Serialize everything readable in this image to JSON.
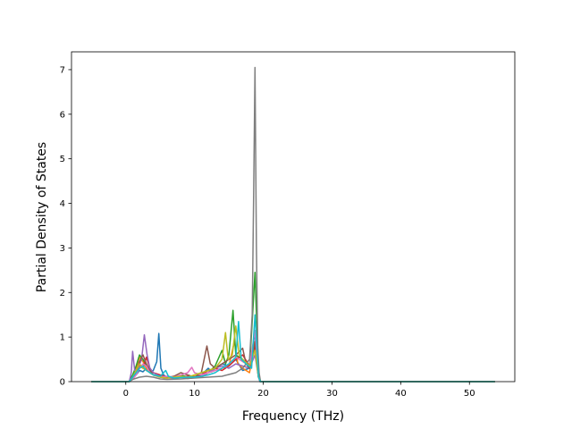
{
  "chart_data": {
    "type": "line",
    "title": "",
    "xlabel": "Frequency (THz)",
    "ylabel": "Partial Density of States",
    "xlim": [
      -7.9,
      56.6
    ],
    "ylim": [
      0,
      7.4
    ],
    "x_ticks": [
      0,
      10,
      20,
      30,
      40,
      50
    ],
    "y_ticks": [
      0,
      1,
      2,
      3,
      4,
      5,
      6,
      7
    ],
    "grid": false,
    "legend": "none",
    "x_range": [
      -5.0,
      53.7
    ],
    "series": [
      {
        "color": "#1f77b4",
        "points": [
          [
            0.5,
            0
          ],
          [
            1,
            0.08
          ],
          [
            1.5,
            0.15
          ],
          [
            2,
            0.25
          ],
          [
            2.5,
            0.22
          ],
          [
            3,
            0.3
          ],
          [
            3.5,
            0.2
          ],
          [
            4,
            0.25
          ],
          [
            4.5,
            0.45
          ],
          [
            4.8,
            1.08
          ],
          [
            5.1,
            0.3
          ],
          [
            5.5,
            0.15
          ],
          [
            6,
            0.1
          ],
          [
            7,
            0.08
          ],
          [
            8,
            0.1
          ],
          [
            9,
            0.07
          ],
          [
            10,
            0.09
          ],
          [
            11,
            0.15
          ],
          [
            12,
            0.3
          ],
          [
            12.5,
            0.22
          ],
          [
            13,
            0.3
          ],
          [
            14,
            0.4
          ],
          [
            15,
            0.35
          ],
          [
            16,
            0.5
          ],
          [
            17,
            0.25
          ],
          [
            18,
            0.3
          ],
          [
            18.8,
            1.1
          ],
          [
            19.2,
            0.2
          ],
          [
            19.5,
            0
          ]
        ]
      },
      {
        "color": "#ff7f0e",
        "points": [
          [
            0.5,
            0
          ],
          [
            1,
            0.1
          ],
          [
            1.5,
            0.3
          ],
          [
            2,
            0.55
          ],
          [
            2.5,
            0.45
          ],
          [
            3,
            0.3
          ],
          [
            3.5,
            0.2
          ],
          [
            4,
            0.15
          ],
          [
            5,
            0.1
          ],
          [
            6,
            0.08
          ],
          [
            7,
            0.12
          ],
          [
            8,
            0.1
          ],
          [
            9,
            0.08
          ],
          [
            10,
            0.12
          ],
          [
            11,
            0.1
          ],
          [
            12,
            0.2
          ],
          [
            13,
            0.25
          ],
          [
            14,
            0.3
          ],
          [
            15,
            0.35
          ],
          [
            15.8,
            0.9
          ],
          [
            16.3,
            0.4
          ],
          [
            17,
            0.3
          ],
          [
            18,
            0.2
          ],
          [
            18.8,
            0.9
          ],
          [
            19.3,
            0.1
          ],
          [
            19.6,
            0
          ]
        ]
      },
      {
        "color": "#2ca02c",
        "points": [
          [
            0.5,
            0
          ],
          [
            1,
            0.15
          ],
          [
            1.5,
            0.35
          ],
          [
            2,
            0.6
          ],
          [
            2.5,
            0.5
          ],
          [
            3,
            0.35
          ],
          [
            3.5,
            0.25
          ],
          [
            4,
            0.2
          ],
          [
            5,
            0.12
          ],
          [
            6,
            0.1
          ],
          [
            7,
            0.1
          ],
          [
            8,
            0.15
          ],
          [
            9,
            0.1
          ],
          [
            10,
            0.1
          ],
          [
            11,
            0.12
          ],
          [
            12,
            0.2
          ],
          [
            13,
            0.35
          ],
          [
            14,
            0.7
          ],
          [
            14.5,
            0.4
          ],
          [
            15,
            0.6
          ],
          [
            15.6,
            1.6
          ],
          [
            16,
            0.6
          ],
          [
            17,
            0.5
          ],
          [
            18,
            0.3
          ],
          [
            18.8,
            2.45
          ],
          [
            19.3,
            0.2
          ],
          [
            19.6,
            0
          ]
        ]
      },
      {
        "color": "#d62728",
        "points": [
          [
            0.5,
            0
          ],
          [
            1,
            0.1
          ],
          [
            1.5,
            0.2
          ],
          [
            2,
            0.35
          ],
          [
            2.5,
            0.3
          ],
          [
            3,
            0.55
          ],
          [
            3.5,
            0.3
          ],
          [
            4,
            0.2
          ],
          [
            5,
            0.15
          ],
          [
            6,
            0.1
          ],
          [
            7,
            0.08
          ],
          [
            8,
            0.1
          ],
          [
            9,
            0.12
          ],
          [
            10,
            0.1
          ],
          [
            11,
            0.15
          ],
          [
            12,
            0.25
          ],
          [
            13,
            0.3
          ],
          [
            14,
            0.25
          ],
          [
            15,
            0.35
          ],
          [
            16,
            0.5
          ],
          [
            17,
            0.6
          ],
          [
            18,
            0.35
          ],
          [
            18.8,
            0.8
          ],
          [
            19.3,
            0.1
          ],
          [
            19.6,
            0
          ]
        ]
      },
      {
        "color": "#9467bd",
        "points": [
          [
            0.5,
            0
          ],
          [
            0.8,
            0.2
          ],
          [
            1.0,
            0.68
          ],
          [
            1.3,
            0.25
          ],
          [
            1.8,
            0.3
          ],
          [
            2.3,
            0.5
          ],
          [
            2.7,
            1.05
          ],
          [
            3.1,
            0.6
          ],
          [
            3.5,
            0.3
          ],
          [
            4,
            0.2
          ],
          [
            5,
            0.12
          ],
          [
            6,
            0.1
          ],
          [
            7,
            0.08
          ],
          [
            8,
            0.1
          ],
          [
            9,
            0.09
          ],
          [
            10,
            0.1
          ],
          [
            11,
            0.12
          ],
          [
            12,
            0.2
          ],
          [
            13,
            0.3
          ],
          [
            14,
            0.35
          ],
          [
            15,
            0.3
          ],
          [
            16,
            0.4
          ],
          [
            17,
            0.35
          ],
          [
            18,
            0.3
          ],
          [
            18.8,
            0.6
          ],
          [
            19.3,
            0.1
          ],
          [
            19.6,
            0
          ]
        ]
      },
      {
        "color": "#8c564b",
        "points": [
          [
            0.5,
            0
          ],
          [
            1,
            0.1
          ],
          [
            1.5,
            0.2
          ],
          [
            2,
            0.45
          ],
          [
            2.5,
            0.6
          ],
          [
            3,
            0.4
          ],
          [
            3.5,
            0.25
          ],
          [
            4,
            0.15
          ],
          [
            5,
            0.1
          ],
          [
            6,
            0.09
          ],
          [
            7,
            0.12
          ],
          [
            8,
            0.2
          ],
          [
            9,
            0.15
          ],
          [
            10,
            0.1
          ],
          [
            11,
            0.2
          ],
          [
            11.8,
            0.8
          ],
          [
            12.3,
            0.4
          ],
          [
            13,
            0.3
          ],
          [
            14,
            0.4
          ],
          [
            15,
            0.5
          ],
          [
            16,
            0.6
          ],
          [
            17,
            0.75
          ],
          [
            17.5,
            0.4
          ],
          [
            18,
            0.3
          ],
          [
            18.8,
            0.9
          ],
          [
            19.3,
            0.1
          ],
          [
            19.6,
            0
          ]
        ]
      },
      {
        "color": "#e377c2",
        "points": [
          [
            0.5,
            0
          ],
          [
            1,
            0.05
          ],
          [
            1.5,
            0.15
          ],
          [
            2,
            0.3
          ],
          [
            2.5,
            0.4
          ],
          [
            3,
            0.35
          ],
          [
            3.5,
            0.2
          ],
          [
            4,
            0.15
          ],
          [
            5,
            0.1
          ],
          [
            6,
            0.12
          ],
          [
            7,
            0.1
          ],
          [
            8,
            0.15
          ],
          [
            9,
            0.2
          ],
          [
            9.6,
            0.32
          ],
          [
            10,
            0.2
          ],
          [
            11,
            0.15
          ],
          [
            12,
            0.2
          ],
          [
            13,
            0.25
          ],
          [
            14,
            0.3
          ],
          [
            15,
            0.4
          ],
          [
            16,
            0.55
          ],
          [
            17,
            0.45
          ],
          [
            18,
            0.35
          ],
          [
            18.8,
            1.15
          ],
          [
            19.3,
            0.1
          ],
          [
            19.6,
            0
          ]
        ]
      },
      {
        "color": "#7f7f7f",
        "points": [
          [
            0.5,
            0
          ],
          [
            1,
            0.05
          ],
          [
            2,
            0.1
          ],
          [
            3,
            0.12
          ],
          [
            4,
            0.1
          ],
          [
            5,
            0.06
          ],
          [
            6,
            0.05
          ],
          [
            8,
            0.06
          ],
          [
            10,
            0.08
          ],
          [
            12,
            0.1
          ],
          [
            14,
            0.12
          ],
          [
            16,
            0.2
          ],
          [
            17,
            0.3
          ],
          [
            18,
            0.5
          ],
          [
            18.4,
            1.5
          ],
          [
            18.6,
            4.2
          ],
          [
            18.8,
            7.05
          ],
          [
            19.0,
            3.0
          ],
          [
            19.2,
            0.8
          ],
          [
            19.4,
            0.2
          ],
          [
            19.6,
            0
          ]
        ]
      },
      {
        "color": "#bcbd22",
        "points": [
          [
            0.5,
            0
          ],
          [
            1,
            0.1
          ],
          [
            1.5,
            0.25
          ],
          [
            2,
            0.4
          ],
          [
            2.5,
            0.3
          ],
          [
            3,
            0.25
          ],
          [
            3.5,
            0.2
          ],
          [
            4,
            0.15
          ],
          [
            5,
            0.1
          ],
          [
            6,
            0.08
          ],
          [
            7,
            0.1
          ],
          [
            8,
            0.12
          ],
          [
            9,
            0.1
          ],
          [
            10,
            0.15
          ],
          [
            11,
            0.2
          ],
          [
            12,
            0.25
          ],
          [
            13,
            0.3
          ],
          [
            14,
            0.5
          ],
          [
            14.5,
            1.1
          ],
          [
            14.9,
            0.5
          ],
          [
            15.5,
            0.6
          ],
          [
            16,
            1.25
          ],
          [
            16.5,
            0.6
          ],
          [
            17,
            0.5
          ],
          [
            18,
            0.35
          ],
          [
            18.8,
            0.7
          ],
          [
            19.3,
            0.1
          ],
          [
            19.6,
            0
          ]
        ]
      },
      {
        "color": "#17becf",
        "points": [
          [
            0.5,
            0
          ],
          [
            1,
            0.1
          ],
          [
            1.5,
            0.2
          ],
          [
            2,
            0.3
          ],
          [
            2.5,
            0.35
          ],
          [
            3,
            0.25
          ],
          [
            3.5,
            0.2
          ],
          [
            4,
            0.15
          ],
          [
            5,
            0.12
          ],
          [
            5.8,
            0.25
          ],
          [
            6.2,
            0.12
          ],
          [
            7,
            0.08
          ],
          [
            8,
            0.09
          ],
          [
            9,
            0.1
          ],
          [
            10,
            0.1
          ],
          [
            11,
            0.12
          ],
          [
            12,
            0.15
          ],
          [
            13,
            0.2
          ],
          [
            14,
            0.3
          ],
          [
            15,
            0.4
          ],
          [
            16,
            0.55
          ],
          [
            16.4,
            1.35
          ],
          [
            16.8,
            0.5
          ],
          [
            17.5,
            0.4
          ],
          [
            18.3,
            0.3
          ],
          [
            18.8,
            1.5
          ],
          [
            19.3,
            0.1
          ],
          [
            19.6,
            0
          ]
        ]
      }
    ]
  }
}
